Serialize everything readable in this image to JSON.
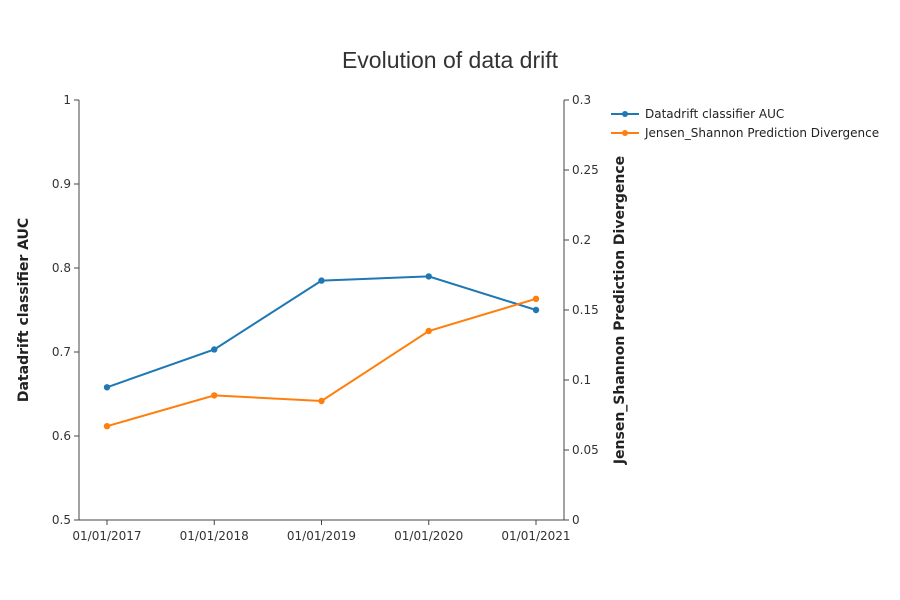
{
  "chart_data": {
    "type": "line",
    "title": "Evolution of data drift",
    "categories": [
      "01/01/2017",
      "01/01/2018",
      "01/01/2019",
      "01/01/2020",
      "01/01/2021"
    ],
    "y_left": {
      "label": "Datadrift classifier AUC",
      "range": [
        0.5,
        1
      ],
      "ticks": [
        "1",
        "0.9",
        "0.8",
        "0.7",
        "0.6",
        "0.5"
      ]
    },
    "y_right": {
      "label": "Jensen_Shannon Prediction Divergence",
      "range": [
        0,
        0.3
      ],
      "ticks": [
        "0.3",
        "0.25",
        "0.2",
        "0.15",
        "0.1",
        "0.05",
        "0"
      ]
    },
    "series": [
      {
        "name": "Datadrift classifier AUC",
        "axis": "left",
        "color": "#1f77b4",
        "values": [
          0.658,
          0.703,
          0.785,
          0.79,
          0.75
        ]
      },
      {
        "name": "Jensen_Shannon Prediction Divergence",
        "axis": "right",
        "color": "#ff7f0e",
        "values": [
          0.067,
          0.089,
          0.085,
          0.135,
          0.158
        ]
      }
    ],
    "grid": false,
    "legend_position": "top-right"
  }
}
